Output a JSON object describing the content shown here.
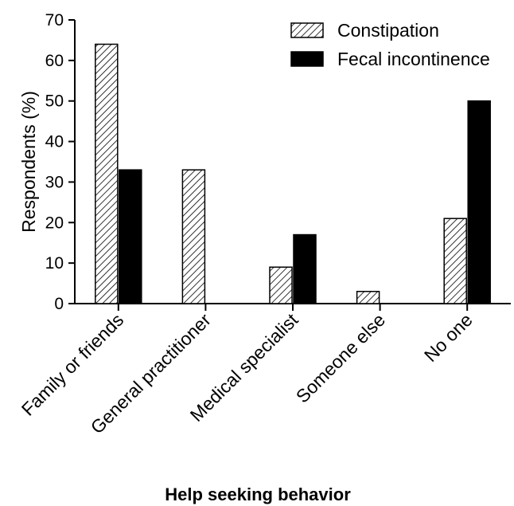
{
  "chart_data": {
    "type": "bar",
    "xlabel": "Help seeking behavior",
    "ylabel": "Respondents (%)",
    "ylim": [
      0,
      70
    ],
    "yticks": [
      0,
      10,
      20,
      30,
      40,
      50,
      60,
      70
    ],
    "categories": [
      "Family or friends",
      "General practitioner",
      "Medical specialist",
      "Someone else",
      "No one"
    ],
    "series": [
      {
        "name": "Constipation",
        "fill": "hatched",
        "color": "#000000",
        "values": [
          64,
          33,
          9,
          3,
          21
        ]
      },
      {
        "name": "Fecal incontinence",
        "fill": "solid",
        "color": "#000000",
        "values": [
          33,
          0,
          17,
          0,
          50
        ]
      }
    ],
    "legend_position": "top-right",
    "grid": false
  }
}
